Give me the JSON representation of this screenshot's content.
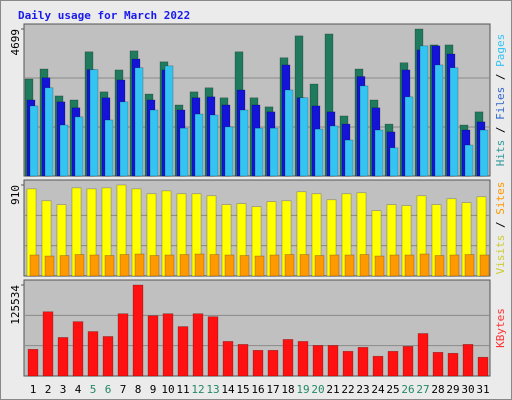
{
  "chart_data": [
    {
      "type": "bar",
      "title": "Daily usage for March 2022",
      "ylim": [
        0,
        4699
      ],
      "yticks": [
        4699
      ],
      "legend_separator": " / ",
      "series": [
        {
          "name": "Hits",
          "color": "#1f7a5e",
          "label_color": "#339999",
          "values": [
            3100,
            3420,
            2560,
            2430,
            3970,
            2690,
            3390,
            4000,
            2620,
            3650,
            2270,
            2690,
            2820,
            2500,
            3970,
            2500,
            2210,
            3780,
            4480,
            2940,
            4540,
            1920,
            3420,
            2430,
            1660,
            3620,
            4699,
            4190,
            4190,
            1630,
            2050
          ]
        },
        {
          "name": "Files",
          "color": "#1414d8",
          "label_color": "#3366cc",
          "values": [
            2430,
            3140,
            2370,
            2180,
            3400,
            2500,
            3070,
            3740,
            2430,
            3390,
            2110,
            2500,
            2530,
            2270,
            2750,
            2270,
            2050,
            3550,
            2500,
            2240,
            2050,
            1660,
            3180,
            2180,
            1410,
            3390,
            4030,
            4160,
            3900,
            1470,
            1730
          ]
        },
        {
          "name": "Pages",
          "color": "#33c4f2",
          "label_color": "#33c4f2",
          "values": [
            2240,
            2820,
            1630,
            1890,
            3400,
            1790,
            2370,
            3460,
            2110,
            3520,
            1530,
            1980,
            1950,
            1570,
            2110,
            1530,
            1530,
            2750,
            2500,
            1500,
            1600,
            1150,
            2880,
            1470,
            900,
            2530,
            4160,
            3550,
            3460,
            990,
            1470
          ]
        }
      ]
    },
    {
      "type": "bar",
      "ylim": [
        0,
        910
      ],
      "yticks": [
        910
      ],
      "legend_separator": " / ",
      "series": [
        {
          "name": "Visits",
          "color": "#ffff00",
          "label_color": "#cccc33",
          "values": [
            871,
            752,
            713,
            881,
            871,
            881,
            910,
            871,
            822,
            851,
            822,
            822,
            802,
            713,
            723,
            693,
            743,
            752,
            842,
            822,
            762,
            822,
            832,
            653,
            713,
            703,
            802,
            713,
            772,
            733,
            792
          ]
        },
        {
          "name": "Sites",
          "color": "#ff9900",
          "label_color": "#ff9900",
          "values": [
            210,
            200,
            205,
            215,
            210,
            205,
            215,
            220,
            205,
            210,
            215,
            220,
            215,
            210,
            205,
            200,
            210,
            215,
            215,
            205,
            210,
            210,
            215,
            200,
            210,
            210,
            220,
            205,
            210,
            215,
            210
          ]
        }
      ]
    },
    {
      "type": "bar",
      "ylim": [
        0,
        125534
      ],
      "yticks": [
        125534
      ],
      "categories": [
        "1",
        "2",
        "3",
        "4",
        "5",
        "6",
        "7",
        "8",
        "9",
        "10",
        "11",
        "12",
        "13",
        "14",
        "15",
        "16",
        "17",
        "18",
        "19",
        "20",
        "21",
        "22",
        "23",
        "24",
        "25",
        "26",
        "27",
        "28",
        "29",
        "30",
        "31"
      ],
      "highlighted": [
        "5",
        "6",
        "12",
        "13",
        "19",
        "20",
        "26",
        "27"
      ],
      "label_color": "#000000",
      "highlight_color": "#228866",
      "series": [
        {
          "name": "KBytes",
          "color": "#ff1111",
          "label_color": "#ff3333",
          "values": [
            36830,
            88660,
            53200,
            75020,
            61380,
            54560,
            85930,
            125534,
            83200,
            85930,
            68200,
            85930,
            81840,
            47740,
            43650,
            35460,
            35460,
            50470,
            47740,
            42280,
            42280,
            34100,
            39560,
            27280,
            34100,
            40920,
            58650,
            32740,
            31370,
            43650,
            25920
          ]
        }
      ]
    }
  ]
}
